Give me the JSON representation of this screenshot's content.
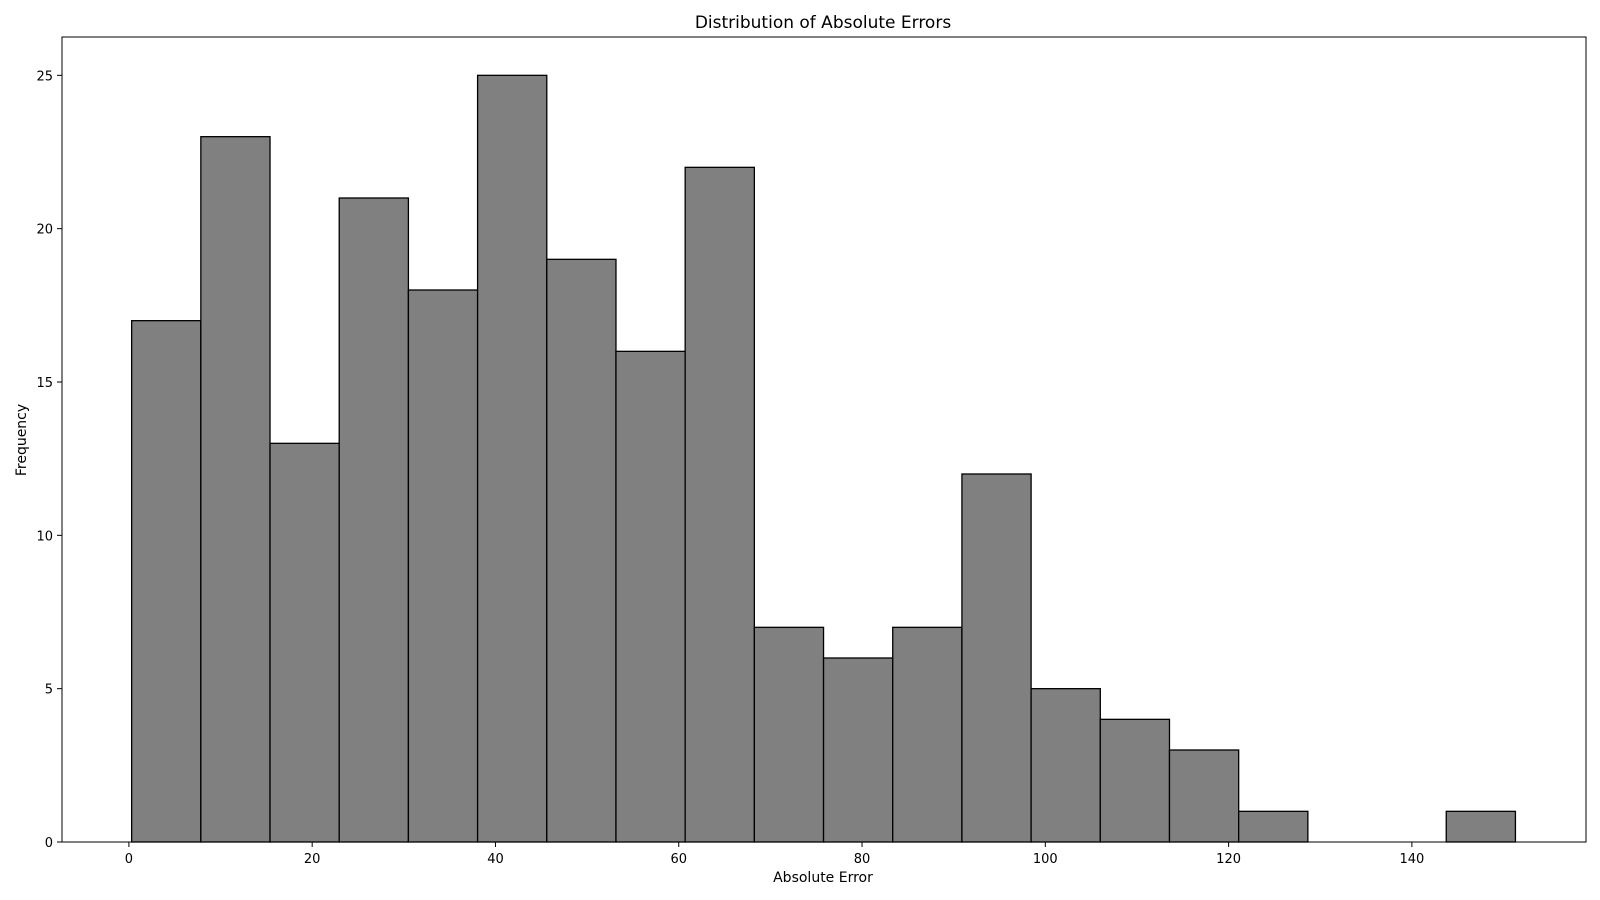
{
  "chart_data": {
    "type": "bar",
    "title": "Distribution of Absolute Errors",
    "xlabel": "Absolute Error",
    "ylabel": "Frequency",
    "bin_edges": [
      0.3,
      7.85,
      15.4,
      22.95,
      30.5,
      38.05,
      45.6,
      53.15,
      60.7,
      68.25,
      75.8,
      83.35,
      90.9,
      98.45,
      106.0,
      113.55,
      121.1,
      128.65,
      136.2,
      143.75,
      151.3
    ],
    "values": [
      17,
      23,
      13,
      21,
      18,
      25,
      19,
      16,
      22,
      7,
      6,
      7,
      12,
      5,
      4,
      3,
      1,
      0,
      0,
      1
    ],
    "xlim": [
      -7.3,
      159.0
    ],
    "ylim": [
      0,
      26.25
    ],
    "xticks": [
      0,
      20,
      40,
      60,
      80,
      100,
      120,
      140
    ],
    "yticks": [
      0,
      5,
      10,
      15,
      20,
      25
    ],
    "bar_color": "#808080",
    "edge_color": "#000000",
    "grid": false
  }
}
